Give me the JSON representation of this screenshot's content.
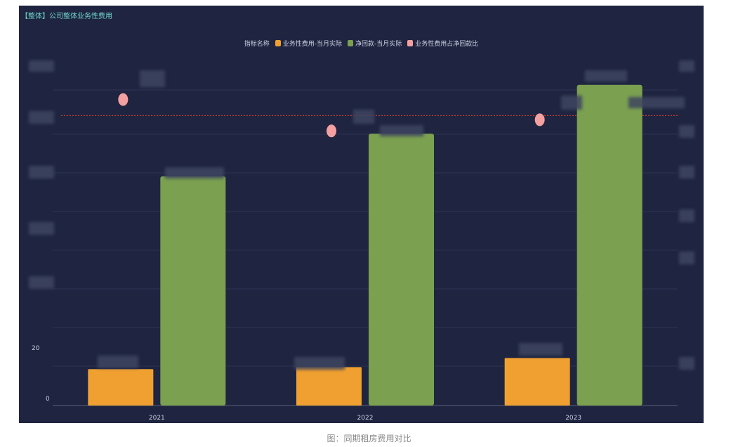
{
  "panel": {
    "title": "【整体】公司整体业务性费用"
  },
  "legend": {
    "heading": "指标名称",
    "items": [
      {
        "label": "业务性费用-当月实际",
        "color": "#f0a030"
      },
      {
        "label": "净回款-当月实际",
        "color": "#7ba050"
      },
      {
        "label": "业务性费用占净回款比",
        "color": "#f4a0a0"
      }
    ]
  },
  "caption": "图：同期租房费用对比",
  "chart_data": {
    "type": "bar",
    "categories": [
      "2021",
      "2022",
      "2023"
    ],
    "series": [
      {
        "name": "业务性费用-当月实际",
        "color": "#f0a030",
        "values": [
          52,
          55,
          68
        ]
      },
      {
        "name": "净回款-当月实际",
        "color": "#7ba050",
        "values": [
          328,
          389,
          459
        ]
      },
      {
        "name": "业务性费用占净回款比",
        "color": "#f4a0a0",
        "type": "scatter",
        "values": [
          438,
          393,
          409
        ]
      }
    ],
    "reference_line": {
      "value": 415,
      "color": "#c0392b",
      "style": "dotted"
    },
    "ylim": [
      0,
      510
    ],
    "ytick_labels_visible": [
      "20",
      "0"
    ],
    "grid": true,
    "legend_position": "top-center"
  }
}
